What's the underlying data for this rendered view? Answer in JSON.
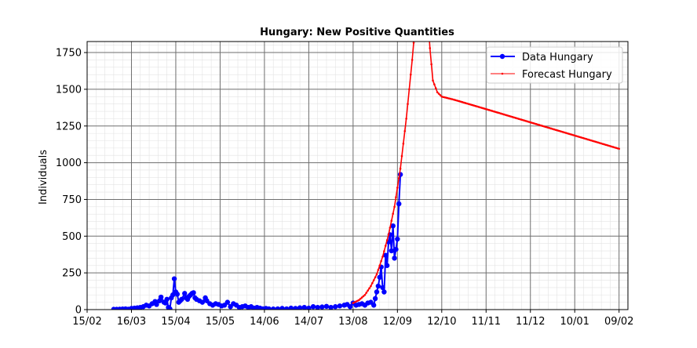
{
  "chart_data": {
    "type": "line",
    "title": "Hungary: New Positive Quantities",
    "xlabel": "",
    "ylabel": "Individuals",
    "x_axis": {
      "type": "date",
      "range": [
        "2020-02-15",
        "2021-02-15"
      ],
      "ticks": [
        {
          "date": "2020-02-15",
          "label": "15/02"
        },
        {
          "date": "2020-03-16",
          "label": "16/03"
        },
        {
          "date": "2020-04-15",
          "label": "15/04"
        },
        {
          "date": "2020-05-15",
          "label": "15/05"
        },
        {
          "date": "2020-06-14",
          "label": "14/06"
        },
        {
          "date": "2020-07-14",
          "label": "14/07"
        },
        {
          "date": "2020-08-13",
          "label": "13/08"
        },
        {
          "date": "2020-09-12",
          "label": "12/09"
        },
        {
          "date": "2020-10-12",
          "label": "12/10"
        },
        {
          "date": "2020-11-11",
          "label": "11/11"
        },
        {
          "date": "2020-12-11",
          "label": "11/12"
        },
        {
          "date": "2021-01-10",
          "label": "10/01"
        },
        {
          "date": "2021-02-09",
          "label": "09/02"
        }
      ]
    },
    "ylim": [
      0,
      1825
    ],
    "yticks": [
      0,
      250,
      500,
      750,
      1000,
      1250,
      1500,
      1750
    ],
    "grid": true,
    "minor_grid": true,
    "legend_position": "top-right",
    "series": [
      {
        "name": "Data Hungary",
        "color": "#0000ff",
        "style": "line-markers",
        "points": [
          [
            "2020-03-04",
            2
          ],
          [
            "2020-03-06",
            2
          ],
          [
            "2020-03-08",
            3
          ],
          [
            "2020-03-10",
            4
          ],
          [
            "2020-03-12",
            5
          ],
          [
            "2020-03-14",
            3
          ],
          [
            "2020-03-16",
            8
          ],
          [
            "2020-03-18",
            10
          ],
          [
            "2020-03-20",
            12
          ],
          [
            "2020-03-22",
            15
          ],
          [
            "2020-03-24",
            20
          ],
          [
            "2020-03-26",
            30
          ],
          [
            "2020-03-28",
            25
          ],
          [
            "2020-03-30",
            40
          ],
          [
            "2020-04-01",
            55
          ],
          [
            "2020-04-02",
            35
          ],
          [
            "2020-04-04",
            60
          ],
          [
            "2020-04-05",
            85
          ],
          [
            "2020-04-07",
            50
          ],
          [
            "2020-04-08",
            45
          ],
          [
            "2020-04-09",
            70
          ],
          [
            "2020-04-10",
            15
          ],
          [
            "2020-04-11",
            5
          ],
          [
            "2020-04-12",
            80
          ],
          [
            "2020-04-13",
            100
          ],
          [
            "2020-04-14",
            210
          ],
          [
            "2020-04-15",
            120
          ],
          [
            "2020-04-16",
            105
          ],
          [
            "2020-04-17",
            50
          ],
          [
            "2020-04-18",
            60
          ],
          [
            "2020-04-19",
            70
          ],
          [
            "2020-04-21",
            110
          ],
          [
            "2020-04-22",
            80
          ],
          [
            "2020-04-23",
            70
          ],
          [
            "2020-04-24",
            90
          ],
          [
            "2020-04-25",
            100
          ],
          [
            "2020-04-26",
            110
          ],
          [
            "2020-04-27",
            115
          ],
          [
            "2020-04-28",
            80
          ],
          [
            "2020-04-29",
            70
          ],
          [
            "2020-05-01",
            60
          ],
          [
            "2020-05-03",
            50
          ],
          [
            "2020-05-05",
            80
          ],
          [
            "2020-05-06",
            60
          ],
          [
            "2020-05-08",
            40
          ],
          [
            "2020-05-10",
            30
          ],
          [
            "2020-05-12",
            40
          ],
          [
            "2020-05-14",
            35
          ],
          [
            "2020-05-16",
            25
          ],
          [
            "2020-05-18",
            30
          ],
          [
            "2020-05-20",
            50
          ],
          [
            "2020-05-22",
            20
          ],
          [
            "2020-05-24",
            40
          ],
          [
            "2020-05-26",
            30
          ],
          [
            "2020-05-28",
            15
          ],
          [
            "2020-05-30",
            20
          ],
          [
            "2020-06-01",
            25
          ],
          [
            "2020-06-03",
            15
          ],
          [
            "2020-06-05",
            20
          ],
          [
            "2020-06-07",
            10
          ],
          [
            "2020-06-09",
            15
          ],
          [
            "2020-06-11",
            10
          ],
          [
            "2020-06-13",
            5
          ],
          [
            "2020-06-15",
            8
          ],
          [
            "2020-06-17",
            5
          ],
          [
            "2020-06-20",
            4
          ],
          [
            "2020-06-23",
            5
          ],
          [
            "2020-06-26",
            8
          ],
          [
            "2020-06-29",
            5
          ],
          [
            "2020-07-02",
            10
          ],
          [
            "2020-07-05",
            8
          ],
          [
            "2020-07-08",
            12
          ],
          [
            "2020-07-11",
            15
          ],
          [
            "2020-07-14",
            10
          ],
          [
            "2020-07-17",
            20
          ],
          [
            "2020-07-20",
            15
          ],
          [
            "2020-07-23",
            18
          ],
          [
            "2020-07-26",
            22
          ],
          [
            "2020-07-29",
            15
          ],
          [
            "2020-08-01",
            20
          ],
          [
            "2020-08-04",
            25
          ],
          [
            "2020-08-07",
            30
          ],
          [
            "2020-08-09",
            35
          ],
          [
            "2020-08-11",
            20
          ],
          [
            "2020-08-13",
            45
          ],
          [
            "2020-08-15",
            30
          ],
          [
            "2020-08-17",
            35
          ],
          [
            "2020-08-19",
            40
          ],
          [
            "2020-08-21",
            30
          ],
          [
            "2020-08-23",
            45
          ],
          [
            "2020-08-25",
            50
          ],
          [
            "2020-08-27",
            30
          ],
          [
            "2020-08-28",
            75
          ],
          [
            "2020-08-29",
            120
          ],
          [
            "2020-08-30",
            160
          ],
          [
            "2020-08-31",
            220
          ],
          [
            "2020-09-01",
            290
          ],
          [
            "2020-09-02",
            150
          ],
          [
            "2020-09-03",
            120
          ],
          [
            "2020-09-04",
            370
          ],
          [
            "2020-09-05",
            300
          ],
          [
            "2020-09-06",
            460
          ],
          [
            "2020-09-07",
            510
          ],
          [
            "2020-09-08",
            400
          ],
          [
            "2020-09-09",
            570
          ],
          [
            "2020-09-10",
            350
          ],
          [
            "2020-09-11",
            410
          ],
          [
            "2020-09-12",
            480
          ],
          [
            "2020-09-13",
            720
          ],
          [
            "2020-09-14",
            920
          ]
        ]
      },
      {
        "name": "Forecast Hungary",
        "color": "#ff0000",
        "style": "line-small-markers",
        "points": [
          [
            "2020-08-13",
            45
          ],
          [
            "2020-08-17",
            65
          ],
          [
            "2020-08-21",
            100
          ],
          [
            "2020-08-25",
            160
          ],
          [
            "2020-08-29",
            240
          ],
          [
            "2020-09-02",
            360
          ],
          [
            "2020-09-06",
            510
          ],
          [
            "2020-09-10",
            700
          ],
          [
            "2020-09-14",
            960
          ],
          [
            "2020-09-18",
            1300
          ],
          [
            "2020-09-22",
            1700
          ],
          [
            "2020-09-25",
            2050
          ],
          [
            "2020-10-02",
            2100
          ],
          [
            "2020-10-04",
            1780
          ],
          [
            "2020-10-06",
            1560
          ],
          [
            "2020-10-09",
            1480
          ],
          [
            "2020-10-12",
            1450
          ],
          [
            "2020-10-20",
            1430
          ],
          [
            "2020-11-11",
            1365
          ],
          [
            "2020-12-11",
            1275
          ],
          [
            "2021-01-10",
            1185
          ],
          [
            "2021-02-09",
            1095
          ]
        ]
      }
    ]
  }
}
